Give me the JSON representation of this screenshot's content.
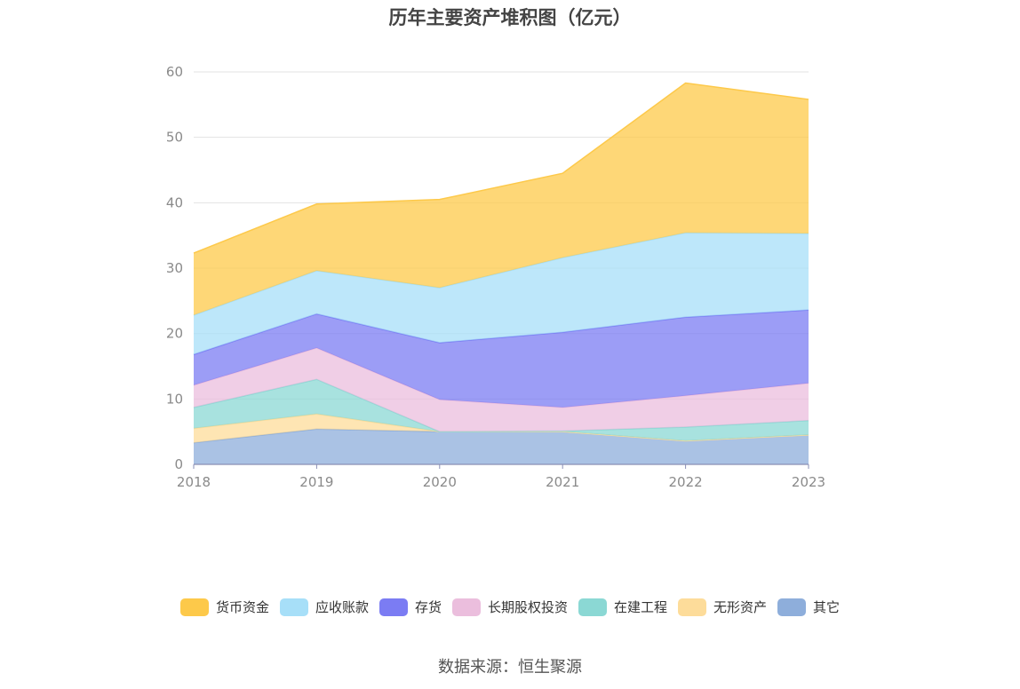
{
  "chart_data": {
    "type": "area",
    "stacked": true,
    "title": "历年主要资产堆积图（亿元）",
    "x": [
      "2018",
      "2019",
      "2020",
      "2021",
      "2022",
      "2023"
    ],
    "ylim": [
      0,
      60
    ],
    "yticks": [
      "0",
      "10",
      "20",
      "30",
      "40",
      "50",
      "60"
    ],
    "grid": true,
    "legend_position": "bottom",
    "series": [
      {
        "name": "其它",
        "color": "#8eaedb",
        "values": [
          3.3,
          5.4,
          5.0,
          5.0,
          3.6,
          4.5
        ]
      },
      {
        "name": "无形资产",
        "color": "#fddc9a",
        "values": [
          2.2,
          2.3,
          0.0,
          0.0,
          0.0,
          0.0
        ]
      },
      {
        "name": "在建工程",
        "color": "#8bd8d4",
        "values": [
          3.2,
          5.3,
          0.0,
          0.1,
          2.1,
          2.2
        ]
      },
      {
        "name": "长期股权投资",
        "color": "#ebbedd",
        "values": [
          3.4,
          4.8,
          4.9,
          3.6,
          4.8,
          5.7
        ]
      },
      {
        "name": "存货",
        "color": "#7b7cf3",
        "values": [
          4.7,
          5.2,
          8.7,
          11.5,
          12.0,
          11.2
        ]
      },
      {
        "name": "应收账款",
        "color": "#a7dff8",
        "values": [
          6.0,
          6.6,
          8.4,
          11.4,
          12.9,
          11.7
        ]
      },
      {
        "name": "货币资金",
        "color": "#fdc94a",
        "values": [
          9.5,
          10.2,
          13.5,
          12.9,
          22.9,
          20.5
        ]
      }
    ],
    "legend_order": [
      "货币资金",
      "应收账款",
      "存货",
      "长期股权投资",
      "在建工程",
      "无形资产",
      "其它"
    ]
  },
  "source": "数据来源：恒生聚源"
}
